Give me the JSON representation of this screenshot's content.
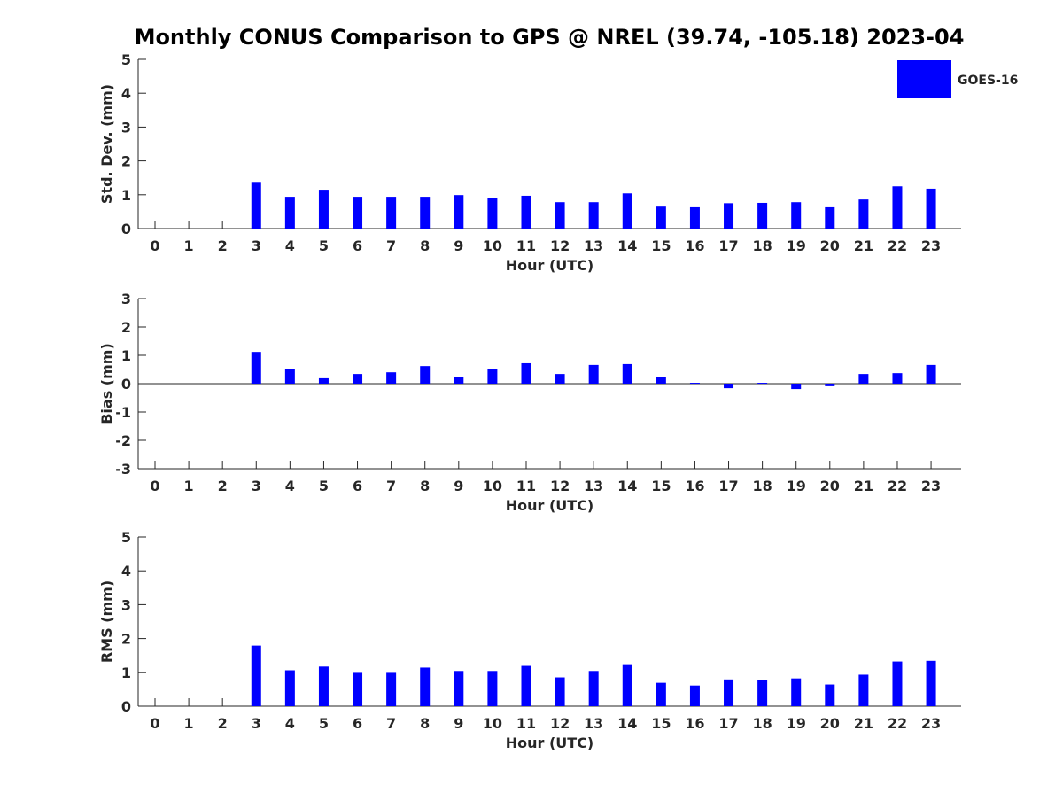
{
  "chart_data": {
    "title": "Monthly CONUS Comparison to GPS @ NREL (39.74, -105.18) 2023-04",
    "series_colors": {
      "GOES-16": "#0000ff"
    },
    "legend": {
      "entries": [
        "GOES-16"
      ],
      "placement": "top-right"
    },
    "panels": [
      {
        "type": "bar",
        "ylabel": "Std. Dev. (mm)",
        "xlabel": "Hour (UTC)",
        "ylim": [
          0,
          5
        ],
        "yticks": [
          "0",
          "1",
          "2",
          "3",
          "4",
          "5"
        ],
        "categories": [
          "0",
          "1",
          "2",
          "3",
          "4",
          "5",
          "6",
          "7",
          "8",
          "9",
          "10",
          "11",
          "12",
          "13",
          "14",
          "15",
          "16",
          "17",
          "18",
          "19",
          "20",
          "21",
          "22",
          "23"
        ],
        "series": [
          {
            "name": "GOES-16",
            "values": [
              null,
              null,
              null,
              1.38,
              0.94,
              1.15,
              0.94,
              0.94,
              0.94,
              0.99,
              0.89,
              0.97,
              0.78,
              0.78,
              1.04,
              0.65,
              0.63,
              0.75,
              0.76,
              0.78,
              0.63,
              0.86,
              1.25,
              1.18
            ]
          }
        ]
      },
      {
        "type": "bar",
        "ylabel": "Bias (mm)",
        "xlabel": "Hour (UTC)",
        "ylim": [
          -3,
          3
        ],
        "yticks": [
          "-3",
          "-2",
          "-1",
          "0",
          "1",
          "2",
          "3"
        ],
        "categories": [
          "0",
          "1",
          "2",
          "3",
          "4",
          "5",
          "6",
          "7",
          "8",
          "9",
          "10",
          "11",
          "12",
          "13",
          "14",
          "15",
          "16",
          "17",
          "18",
          "19",
          "20",
          "21",
          "22",
          "23"
        ],
        "series": [
          {
            "name": "GOES-16",
            "values": [
              null,
              null,
              null,
              1.12,
              0.5,
              0.19,
              0.34,
              0.4,
              0.62,
              0.25,
              0.53,
              0.72,
              0.34,
              0.66,
              0.69,
              0.22,
              0.03,
              -0.16,
              0.03,
              -0.19,
              -0.09,
              0.34,
              0.37,
              0.66
            ]
          }
        ]
      },
      {
        "type": "bar",
        "ylabel": "RMS (mm)",
        "xlabel": "Hour (UTC)",
        "ylim": [
          0,
          5
        ],
        "yticks": [
          "0",
          "1",
          "2",
          "3",
          "4",
          "5"
        ],
        "categories": [
          "0",
          "1",
          "2",
          "3",
          "4",
          "5",
          "6",
          "7",
          "8",
          "9",
          "10",
          "11",
          "12",
          "13",
          "14",
          "15",
          "16",
          "17",
          "18",
          "19",
          "20",
          "21",
          "22",
          "23"
        ],
        "series": [
          {
            "name": "GOES-16",
            "values": [
              null,
              null,
              null,
              1.79,
              1.06,
              1.17,
              1.01,
              1.01,
              1.14,
              1.04,
              1.04,
              1.19,
              0.85,
              1.04,
              1.24,
              0.69,
              0.61,
              0.79,
              0.77,
              0.82,
              0.64,
              0.93,
              1.32,
              1.34
            ]
          }
        ]
      }
    ]
  }
}
